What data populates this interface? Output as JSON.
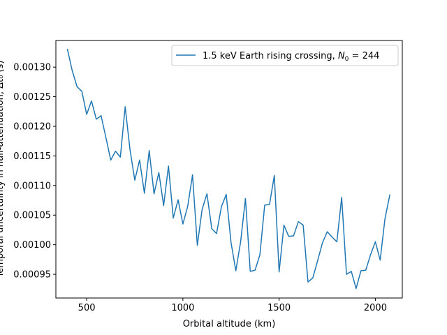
{
  "chart_data": {
    "type": "line",
    "xlabel": "Orbital altitude (km)",
    "ylabel": "Temporal uncertainty in half-attenuation, Δt₀ (s)",
    "xlim": [
      340,
      2140
    ],
    "ylim": [
      0.00091,
      0.001345
    ],
    "xticks": [
      500,
      1000,
      1500,
      2000
    ],
    "yticks": [
      0.00095,
      0.001,
      0.00105,
      0.0011,
      0.00115,
      0.0012,
      0.00125,
      0.0013
    ],
    "ytick_labels": [
      "0.00095",
      "0.00100",
      "0.00105",
      "0.00110",
      "0.00115",
      "0.00120",
      "0.00125",
      "0.00130"
    ],
    "grid": false,
    "legend_position": "upper right",
    "series": [
      {
        "name_prefix": "1.5 keV Earth rising crossing, ",
        "name_math": "N",
        "name_sub": "0",
        "name_suffix": " = 244",
        "color": "#1f77b4",
        "x": [
          400,
          425,
          450,
          475,
          500,
          525,
          550,
          575,
          600,
          625,
          650,
          675,
          700,
          725,
          750,
          775,
          800,
          825,
          850,
          875,
          900,
          925,
          950,
          975,
          1000,
          1025,
          1050,
          1075,
          1100,
          1125,
          1150,
          1175,
          1200,
          1225,
          1250,
          1275,
          1300,
          1325,
          1350,
          1375,
          1400,
          1425,
          1450,
          1475,
          1500,
          1525,
          1550,
          1575,
          1600,
          1625,
          1650,
          1675,
          1700,
          1725,
          1750,
          1775,
          1800,
          1825,
          1850,
          1875,
          1900,
          1925,
          1950,
          1975,
          2000,
          2025,
          2050,
          2075
        ],
        "y": [
          0.00133,
          0.001294,
          0.001267,
          0.001259,
          0.00122,
          0.001243,
          0.001212,
          0.001218,
          0.001181,
          0.001143,
          0.001158,
          0.001148,
          0.001233,
          0.001161,
          0.001109,
          0.001143,
          0.001087,
          0.001159,
          0.001086,
          0.001122,
          0.001066,
          0.001133,
          0.001045,
          0.001076,
          0.001035,
          0.001065,
          0.001118,
          0.000999,
          0.00106,
          0.001086,
          0.001027,
          0.001019,
          0.001064,
          0.001085,
          0.001004,
          0.000956,
          0.001005,
          0.001078,
          0.000955,
          0.000957,
          0.000983,
          0.001067,
          0.001068,
          0.001117,
          0.000954,
          0.001033,
          0.001014,
          0.001015,
          0.001039,
          0.001033,
          0.000937,
          0.000944,
          0.000973,
          0.001003,
          0.001022,
          0.001013,
          0.001005,
          0.00108,
          0.00095,
          0.000955,
          0.000926,
          0.000956,
          0.000957,
          0.000983,
          0.001005,
          0.000974,
          0.001044,
          0.001084
        ]
      }
    ]
  }
}
